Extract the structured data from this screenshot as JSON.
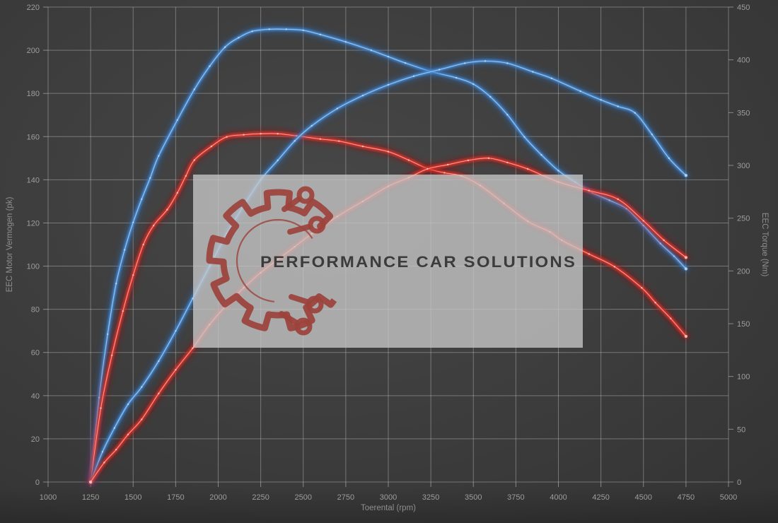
{
  "axes": {
    "x": {
      "label": "Toerental (rpm)",
      "min": 1000,
      "max": 5000,
      "tick_step": 250
    },
    "y_left": {
      "label": "EEC Motor Vermogen (pk)",
      "min": 0,
      "max": 220,
      "tick_step": 20
    },
    "y_right": {
      "label": "EEC Torque (Nm)",
      "min": 0,
      "max": 450,
      "tick_step": 50
    }
  },
  "watermark": {
    "text": "PERFORMANCE CAR SOLUTIONS"
  },
  "colors": {
    "background": "#3c3c3c",
    "grid": "#c8c8c8",
    "tick_text": "#9d9d9d",
    "blue_glow": "#2a66b4",
    "blue_core": "#4a8fd8",
    "blue_highlight": "#b8d8f4",
    "red_glow": "#a81410",
    "red_core": "#e8342a",
    "red_highlight": "#ffc4bc",
    "watermark_box": "#c8c8c8",
    "logo_red": "#9c423c",
    "watermark_text": "#3c3c3c"
  },
  "chart_data": {
    "type": "line",
    "grid": "on",
    "legend": "none",
    "x_axis": {
      "label": "Toerental (rpm)",
      "range": [
        1000,
        5000
      ],
      "ticks_every": 250
    },
    "left_axis": {
      "label": "EEC Motor Vermogen (pk)",
      "range": [
        0,
        220
      ],
      "ticks_every": 20
    },
    "right_axis": {
      "label": "EEC Torque (Nm)",
      "range": [
        0,
        450
      ],
      "ticks_every": 50
    },
    "series": [
      {
        "name": "blue-torque",
        "axis": "right",
        "unit": "Nm",
        "color_key": "blue",
        "peak": {
          "rpm": 2350,
          "value": 429
        },
        "points": [
          [
            1250,
            0
          ],
          [
            1300,
            80
          ],
          [
            1350,
            140
          ],
          [
            1400,
            188
          ],
          [
            1450,
            220
          ],
          [
            1500,
            246
          ],
          [
            1550,
            268
          ],
          [
            1600,
            288
          ],
          [
            1650,
            309
          ],
          [
            1760,
            343
          ],
          [
            1860,
            372
          ],
          [
            1950,
            394
          ],
          [
            2040,
            412
          ],
          [
            2120,
            421
          ],
          [
            2200,
            427
          ],
          [
            2300,
            429
          ],
          [
            2400,
            429
          ],
          [
            2500,
            428
          ],
          [
            2600,
            424
          ],
          [
            2750,
            417
          ],
          [
            2900,
            409
          ],
          [
            3000,
            403
          ],
          [
            3100,
            397
          ],
          [
            3250,
            389
          ],
          [
            3400,
            383
          ],
          [
            3500,
            377
          ],
          [
            3600,
            365
          ],
          [
            3700,
            348
          ],
          [
            3800,
            327
          ],
          [
            3900,
            310
          ],
          [
            4000,
            295
          ],
          [
            4100,
            284
          ],
          [
            4200,
            274
          ],
          [
            4300,
            267
          ],
          [
            4400,
            259
          ],
          [
            4500,
            243
          ],
          [
            4600,
            226
          ],
          [
            4680,
            214
          ],
          [
            4750,
            202
          ]
        ]
      },
      {
        "name": "red-torque",
        "axis": "right",
        "unit": "Nm",
        "color_key": "red",
        "peak": {
          "rpm": 2300,
          "value": 330
        },
        "points": [
          [
            1250,
            0
          ],
          [
            1310,
            70
          ],
          [
            1375,
            120
          ],
          [
            1440,
            162
          ],
          [
            1500,
            196
          ],
          [
            1560,
            225
          ],
          [
            1620,
            243
          ],
          [
            1700,
            258
          ],
          [
            1760,
            274
          ],
          [
            1810,
            290
          ],
          [
            1860,
            305
          ],
          [
            1960,
            318
          ],
          [
            2050,
            327
          ],
          [
            2150,
            329
          ],
          [
            2250,
            330
          ],
          [
            2350,
            330
          ],
          [
            2460,
            328
          ],
          [
            2600,
            325
          ],
          [
            2710,
            323
          ],
          [
            2850,
            318
          ],
          [
            3000,
            313
          ],
          [
            3120,
            305
          ],
          [
            3230,
            297
          ],
          [
            3330,
            293
          ],
          [
            3430,
            290
          ],
          [
            3540,
            281
          ],
          [
            3680,
            264
          ],
          [
            3820,
            247
          ],
          [
            3950,
            237
          ],
          [
            4020,
            229
          ],
          [
            4180,
            216
          ],
          [
            4330,
            204
          ],
          [
            4490,
            184
          ],
          [
            4570,
            170
          ],
          [
            4660,
            155
          ],
          [
            4750,
            138
          ]
        ]
      },
      {
        "name": "blue-power",
        "axis": "left",
        "unit": "pk",
        "color_key": "blue",
        "peak": {
          "rpm": 3570,
          "value": 195
        },
        "points": [
          [
            1250,
            0
          ],
          [
            1320,
            14
          ],
          [
            1390,
            25
          ],
          [
            1470,
            36
          ],
          [
            1550,
            44
          ],
          [
            1650,
            56
          ],
          [
            1750,
            70
          ],
          [
            1850,
            85
          ],
          [
            1950,
            100
          ],
          [
            2050,
            115
          ],
          [
            2150,
            128
          ],
          [
            2250,
            140
          ],
          [
            2350,
            149
          ],
          [
            2450,
            158
          ],
          [
            2550,
            165
          ],
          [
            2700,
            173
          ],
          [
            2850,
            179
          ],
          [
            3000,
            184
          ],
          [
            3150,
            188
          ],
          [
            3300,
            191
          ],
          [
            3450,
            194
          ],
          [
            3570,
            195
          ],
          [
            3700,
            194
          ],
          [
            3850,
            190
          ],
          [
            3960,
            187
          ],
          [
            4130,
            181
          ],
          [
            4250,
            177
          ],
          [
            4350,
            174
          ],
          [
            4450,
            171
          ],
          [
            4550,
            161
          ],
          [
            4650,
            150
          ],
          [
            4750,
            142
          ]
        ]
      },
      {
        "name": "red-power",
        "axis": "left",
        "unit": "pk",
        "color_key": "red",
        "peak": {
          "rpm": 3590,
          "value": 150
        },
        "points": [
          [
            1250,
            0
          ],
          [
            1330,
            9
          ],
          [
            1400,
            15
          ],
          [
            1470,
            22
          ],
          [
            1550,
            29
          ],
          [
            1650,
            41
          ],
          [
            1750,
            52
          ],
          [
            1850,
            62
          ],
          [
            1950,
            73
          ],
          [
            2050,
            82
          ],
          [
            2150,
            90
          ],
          [
            2250,
            97
          ],
          [
            2350,
            103
          ],
          [
            2450,
            109
          ],
          [
            2550,
            115
          ],
          [
            2700,
            123
          ],
          [
            2850,
            130
          ],
          [
            3000,
            137
          ],
          [
            3120,
            141
          ],
          [
            3230,
            145
          ],
          [
            3350,
            147
          ],
          [
            3470,
            149
          ],
          [
            3590,
            150
          ],
          [
            3700,
            148
          ],
          [
            3820,
            145
          ],
          [
            4000,
            139
          ],
          [
            4180,
            135
          ],
          [
            4350,
            131
          ],
          [
            4500,
            121
          ],
          [
            4620,
            112
          ],
          [
            4750,
            104
          ]
        ]
      }
    ]
  }
}
